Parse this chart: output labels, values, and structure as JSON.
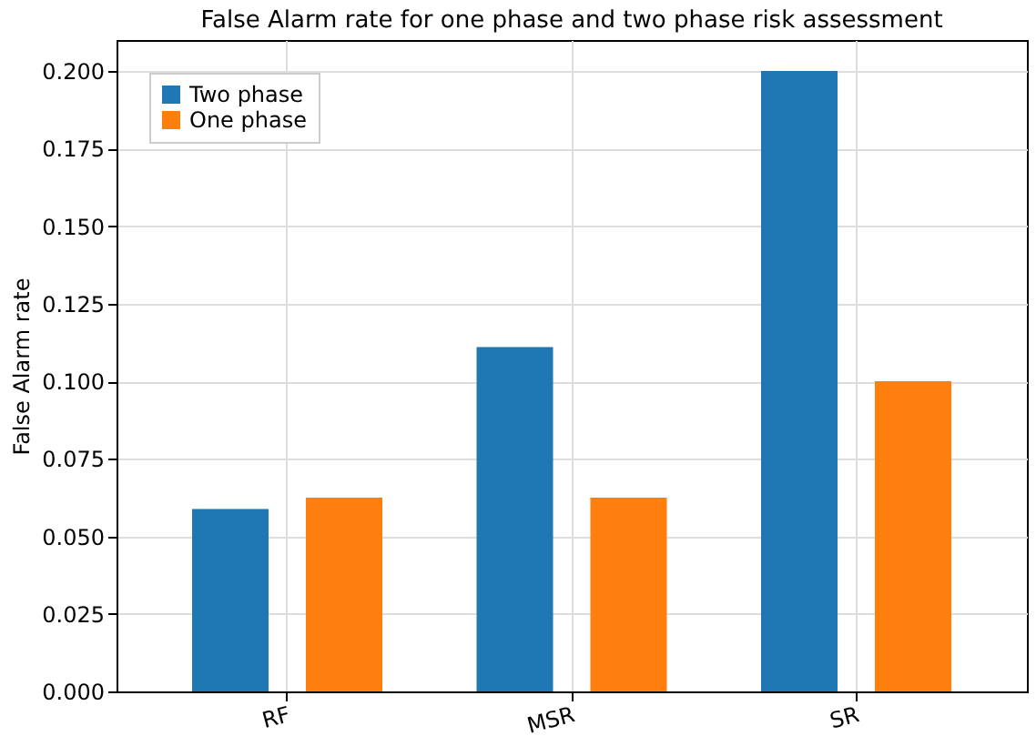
{
  "chart_data": {
    "type": "bar",
    "title": "False Alarm rate  for one phase and two phase risk assessment",
    "ylabel": "False Alarm rate",
    "categories": [
      "RF",
      "MSR",
      "SR"
    ],
    "series": [
      {
        "name": "Two phase",
        "color": "#1f77b4",
        "values": [
          0.0588,
          0.111,
          0.2
        ]
      },
      {
        "name": "One phase",
        "color": "#ff7f0e",
        "values": [
          0.0625,
          0.0625,
          0.1
        ]
      }
    ],
    "ylim": [
      0,
      0.21
    ],
    "yticks": [
      {
        "value": 0,
        "label": "0.000"
      },
      {
        "value": 0.025,
        "label": "0.025"
      },
      {
        "value": 0.05,
        "label": "0.050"
      },
      {
        "value": 0.075,
        "label": "0.075"
      },
      {
        "value": 0.1,
        "label": "0.100"
      },
      {
        "value": 0.125,
        "label": "0.125"
      },
      {
        "value": 0.15,
        "label": "0.150"
      },
      {
        "value": 0.175,
        "label": "0.175"
      },
      {
        "value": 0.2,
        "label": "0.200"
      }
    ],
    "grid": true,
    "legend": "top left"
  }
}
